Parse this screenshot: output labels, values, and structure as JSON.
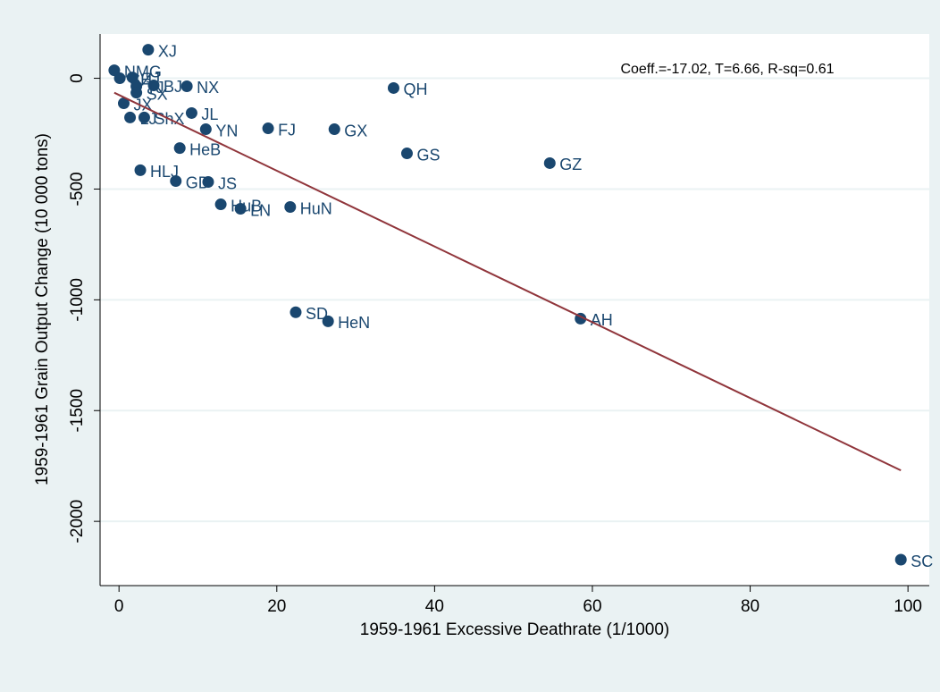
{
  "chart_data": {
    "type": "scatter",
    "x_label": "1959-1961 Excessive Deathrate (1/1000)",
    "y_label": "1959-1961 Grain Output Change (10 000 tons)",
    "annotation": "Coeff.=-17.02, T=6.66, R-sq=0.61",
    "color": "#1a476f",
    "x": [
      3.7,
      -0.6,
      0.1,
      1.7,
      4.4,
      2.2,
      2.2,
      8.6,
      34.8,
      0.6,
      1.4,
      3.2,
      9.2,
      11.0,
      18.9,
      27.3,
      36.5,
      54.6,
      7.7,
      2.7,
      7.2,
      11.3,
      12.9,
      15.4,
      21.7,
      22.4,
      26.5,
      58.5,
      99.1
    ],
    "values": [
      129,
      36,
      0,
      4,
      -32,
      -36,
      -65,
      -36,
      -44,
      -113,
      -177,
      -177,
      -157,
      -230,
      -226,
      -230,
      -339,
      -383,
      -315,
      -415,
      -464,
      -468,
      -569,
      -589,
      -581,
      -1056,
      -1097,
      -1085,
      -2173
    ],
    "point_labels": [
      "XJ",
      "NMG",
      "SH",
      "ZJ",
      "BJ",
      "TJ",
      "SX",
      "NX",
      "QH",
      "JX",
      "LJ",
      "ShX",
      "JL",
      "YN",
      "FJ",
      "GX",
      "GS",
      "GZ",
      "HeB",
      "HLJ",
      "GD",
      "JS",
      "HuB",
      "LN",
      "HuN",
      "SD",
      "HeN",
      "AH",
      "SC"
    ],
    "fit_line": {
      "color": "#90353b",
      "x": [
        -0.6,
        99.1
      ],
      "values": [
        -65,
        -1770
      ]
    },
    "xlim": [
      -2.4,
      102.7
    ],
    "ylim": [
      -2290,
      200
    ],
    "xticks": [
      0,
      20,
      40,
      60,
      80,
      100
    ],
    "yticks": [
      -2000,
      -1500,
      -1000,
      -500,
      0
    ],
    "grid": true
  }
}
